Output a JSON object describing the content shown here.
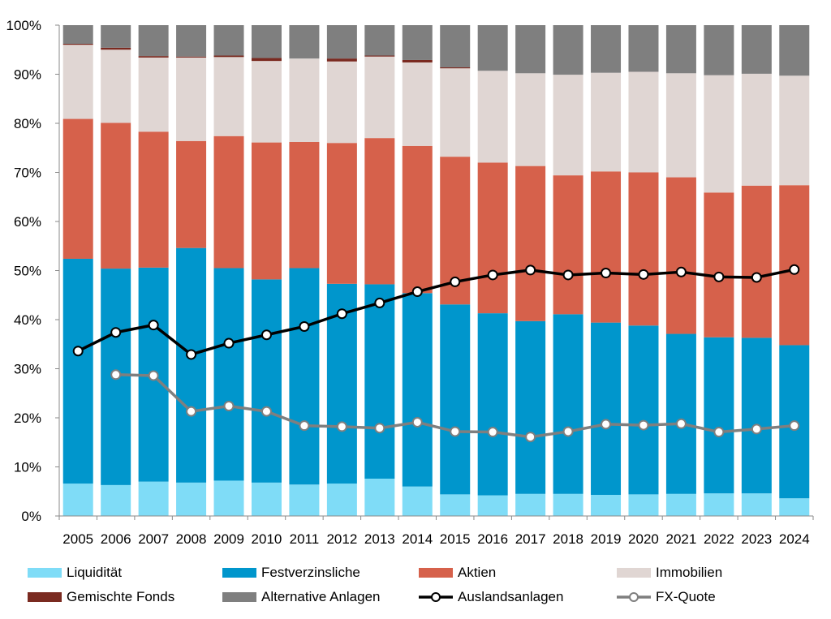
{
  "chart_data": {
    "type": "bar",
    "stacked": true,
    "percent_scale": true,
    "categories": [
      "2005",
      "2006",
      "2007",
      "2008",
      "2009",
      "2010",
      "2011",
      "2012",
      "2013",
      "2014",
      "2015",
      "2016",
      "2017",
      "2018",
      "2019",
      "2020",
      "2021",
      "2022",
      "2023",
      "2024"
    ],
    "ylim": [
      0,
      100
    ],
    "yticks": [
      0,
      10,
      20,
      30,
      40,
      50,
      60,
      70,
      80,
      90,
      100
    ],
    "ytick_labels": [
      "0%",
      "10%",
      "20%",
      "30%",
      "40%",
      "50%",
      "60%",
      "70%",
      "80%",
      "90%",
      "100%"
    ],
    "grid": false,
    "legend_position": "bottom",
    "series": [
      {
        "name": "Liquidität",
        "color": "#7fdcf7",
        "values": [
          6.6,
          6.3,
          7.0,
          6.8,
          7.2,
          6.8,
          6.4,
          6.6,
          7.6,
          6.0,
          4.4,
          4.2,
          4.5,
          4.5,
          4.3,
          4.4,
          4.5,
          4.6,
          4.6,
          3.6
        ]
      },
      {
        "name": "Festverzinsliche",
        "color": "#0096cc",
        "values": [
          45.8,
          44.1,
          43.6,
          47.8,
          43.3,
          41.4,
          44.1,
          40.7,
          39.6,
          39.4,
          38.7,
          37.1,
          35.2,
          36.6,
          35.1,
          34.4,
          32.6,
          31.8,
          31.7,
          31.2
        ]
      },
      {
        "name": "Aktien",
        "color": "#d6614b",
        "values": [
          28.5,
          29.7,
          27.7,
          21.8,
          26.9,
          27.9,
          25.7,
          28.7,
          29.8,
          30.0,
          30.1,
          30.7,
          31.6,
          28.3,
          30.8,
          31.2,
          31.9,
          29.5,
          31.0,
          32.6
        ]
      },
      {
        "name": "Immobilien",
        "color": "#e0d6d3",
        "values": [
          15.1,
          14.9,
          15.1,
          17.0,
          16.1,
          16.6,
          17.0,
          16.6,
          16.6,
          17.0,
          18.0,
          18.7,
          18.9,
          20.5,
          20.1,
          20.5,
          21.2,
          23.9,
          22.8,
          22.3
        ]
      },
      {
        "name": "Gemischte Fonds",
        "color": "#7a2a20",
        "values": [
          0.2,
          0.4,
          0.3,
          0.2,
          0.3,
          0.6,
          0.0,
          0.6,
          0.2,
          0.5,
          0.2,
          0.0,
          0.0,
          0.0,
          0.0,
          0.0,
          0.0,
          0.0,
          0.0,
          0.0
        ]
      },
      {
        "name": "Alternative Anlagen",
        "color": "#7f7f7f",
        "values": [
          3.8,
          4.6,
          6.3,
          6.4,
          6.2,
          6.7,
          6.8,
          6.8,
          6.2,
          7.1,
          8.6,
          9.3,
          9.8,
          10.1,
          9.7,
          9.5,
          9.8,
          10.2,
          9.9,
          10.3
        ]
      }
    ],
    "lines": [
      {
        "name": "Auslandsanlagen",
        "color": "#000000",
        "values": [
          33.6,
          37.4,
          38.9,
          32.9,
          35.2,
          36.9,
          38.6,
          41.2,
          43.4,
          45.7,
          47.7,
          49.1,
          50.1,
          49.1,
          49.5,
          49.2,
          49.7,
          48.7,
          48.6,
          50.2
        ]
      },
      {
        "name": "FX-Quote",
        "color": "#7f7f7f",
        "values": [
          null,
          28.8,
          28.6,
          21.3,
          22.4,
          21.3,
          18.4,
          18.2,
          17.9,
          19.1,
          17.2,
          17.1,
          16.1,
          17.2,
          18.7,
          18.5,
          18.8,
          17.1,
          17.7,
          18.4
        ]
      }
    ]
  }
}
